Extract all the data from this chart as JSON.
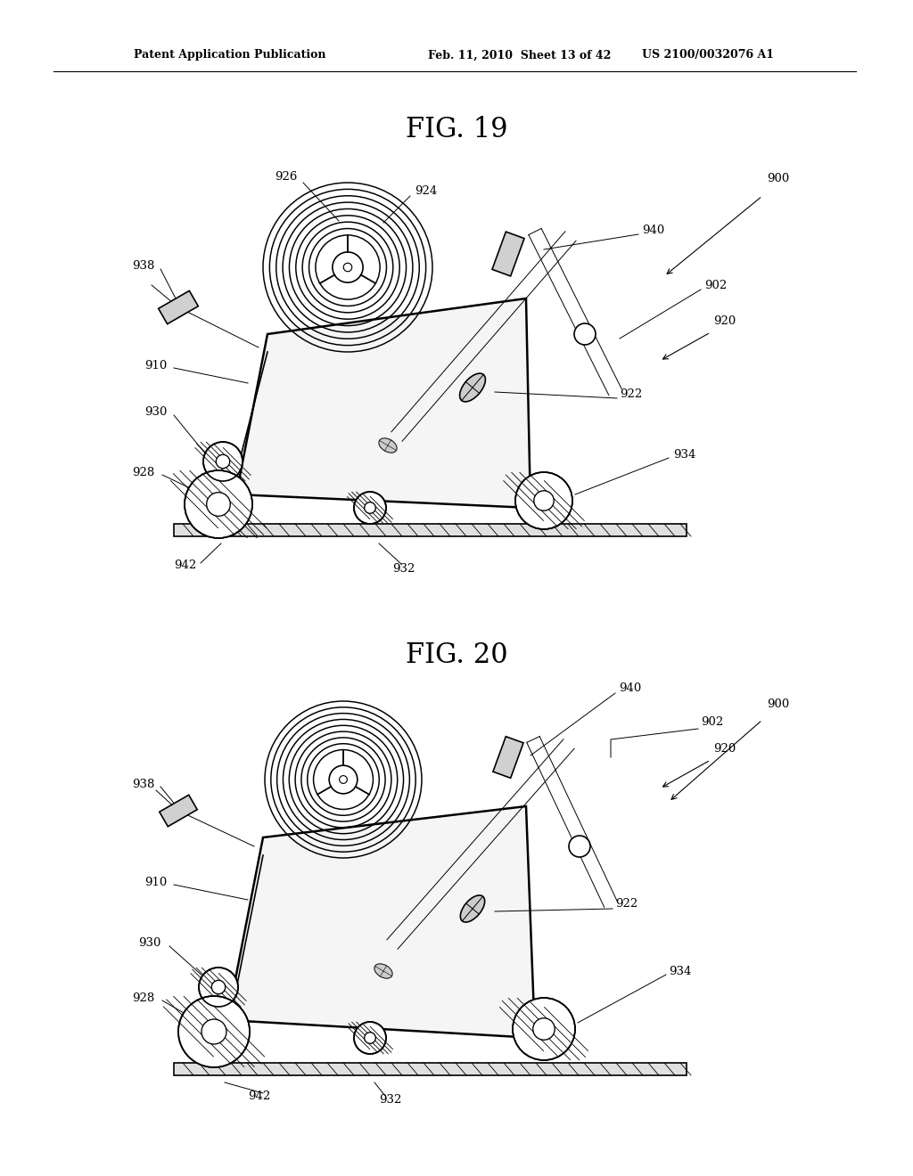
{
  "bg_color": "#ffffff",
  "line_color": "#000000",
  "header": "Patent Application Publication    Feb. 11, 2010  Sheet 13 of 42    US 2100/0032076 A1",
  "header_parts": [
    "Patent Application Publication",
    "Feb. 11, 2010  Sheet 13 of 42",
    "US 2100/0032076 A1"
  ],
  "fig19_title": "FIG. 19",
  "fig20_title": "FIG. 20"
}
